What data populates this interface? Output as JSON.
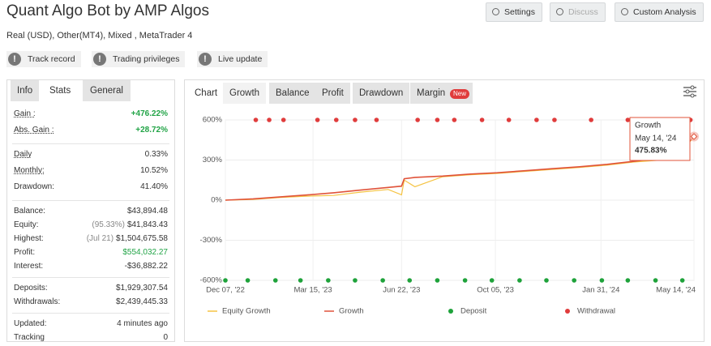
{
  "header": {
    "title": "Quant Algo Bot by AMP Algos",
    "subtitle": "Real (USD), Other(MT4), Mixed , MetaTrader 4",
    "buttons": [
      "Settings",
      "Discuss",
      "Custom Analysis"
    ],
    "badges": [
      "Track record",
      "Trading privileges",
      "Live update"
    ]
  },
  "stats_panel": {
    "tabs": [
      "Info",
      "Stats",
      "General"
    ],
    "groups": [
      [
        {
          "label": "Gain :",
          "value": "+476.22%",
          "color": "#22a447"
        },
        {
          "label": "Abs. Gain :",
          "value": "+28.72%",
          "color": "#22a447"
        }
      ],
      [
        {
          "label": "Daily",
          "value": "0.33%"
        },
        {
          "label": "Monthly:",
          "value": "10.52%"
        },
        {
          "label": "Drawdown:",
          "value": "41.40%"
        }
      ],
      [
        {
          "label": "Balance:",
          "value": "$43,894.48"
        },
        {
          "label": "Equity:",
          "note": "(95.33%)",
          "value": "$41,843.43"
        },
        {
          "label": "Highest:",
          "note": "(Jul 21)",
          "value": "$1,504,675.58"
        },
        {
          "label": "Profit:",
          "value": "$554,032.27",
          "color": "#22a447"
        },
        {
          "label": "Interest:",
          "value": "-$36,882.22"
        }
      ],
      [
        {
          "label": "Deposits:",
          "value": "$1,929,307.54"
        },
        {
          "label": "Withdrawals:",
          "value": "$2,439,445.33"
        }
      ],
      [
        {
          "label": "Updated:",
          "value": "4 minutes ago"
        },
        {
          "label": "Tracking",
          "value": "0"
        }
      ]
    ]
  },
  "chart_panel": {
    "tabs": [
      "Chart",
      "Growth",
      "Balance",
      "Profit",
      "Drawdown",
      "Margin"
    ],
    "new_badge": "New",
    "tooltip": {
      "title": "Growth",
      "date": "May 14, '24",
      "value": "475.83%"
    }
  },
  "chart_data": {
    "type": "line",
    "xlim": [
      "Dec 07, '22",
      "May 14, '24"
    ],
    "xticks": [
      "Dec 07, '22",
      "Mar 15, '23",
      "Jun 22, '23",
      "Oct 05, '23",
      "Jan 31, '24",
      "May 14, '24"
    ],
    "ylim": [
      -600,
      600
    ],
    "yticks": [
      {
        "value": 600,
        "label": "600%"
      },
      {
        "value": 300,
        "label": "300%"
      },
      {
        "value": 0,
        "label": "0%"
      },
      {
        "value": -300,
        "label": "-300%"
      },
      {
        "value": -600,
        "label": "-600%"
      }
    ],
    "grid": true,
    "series": [
      {
        "name": "Equity Growth",
        "color": "#f5c342",
        "kind": "line",
        "x": [
          "Dec 07, '22",
          "Jan 07, '23",
          "Feb 07, '23",
          "Mar 07, '23",
          "Apr 07, '23",
          "May 07, '23",
          "Jun 07, '23",
          "Jun 22, '23",
          "Jun 25, '23",
          "Jul 07, '23",
          "Aug 07, '23",
          "Sep 07, '23",
          "Oct 07, '23",
          "Nov 07, '23",
          "Dec 07, '23",
          "Jan 07, '24",
          "Feb 07, '24",
          "Mar 07, '24",
          "Apr 07, '24",
          "Apr 25, '24",
          "May 14, '24"
        ],
        "values": [
          0,
          5,
          20,
          30,
          35,
          60,
          80,
          40,
          150,
          100,
          175,
          190,
          200,
          215,
          230,
          245,
          262,
          285,
          300,
          330,
          470
        ]
      },
      {
        "name": "Growth",
        "color": "#e0533a",
        "kind": "line",
        "x": [
          "Dec 07, '22",
          "Jan 07, '23",
          "Feb 07, '23",
          "Mar 07, '23",
          "Apr 07, '23",
          "May 07, '23",
          "Jun 07, '23",
          "Jun 22, '23",
          "Jun 25, '23",
          "Jul 07, '23",
          "Aug 07, '23",
          "Sep 07, '23",
          "Oct 07, '23",
          "Nov 07, '23",
          "Dec 07, '23",
          "Jan 07, '24",
          "Feb 07, '24",
          "Mar 07, '24",
          "Apr 07, '24",
          "Apr 25, '24",
          "May 14, '24"
        ],
        "values": [
          0,
          10,
          25,
          38,
          55,
          75,
          95,
          105,
          160,
          170,
          180,
          195,
          205,
          220,
          235,
          250,
          268,
          290,
          315,
          340,
          475.83
        ]
      },
      {
        "name": "Deposit",
        "color": "#1ea23a",
        "kind": "dots",
        "x": [
          "Dec 07, '22",
          "Jan 01, '23",
          "Feb 01, '23",
          "Mar 01, '23",
          "Apr 01, '23",
          "May 01, '23",
          "Jun 01, '23",
          "Jul 01, '23",
          "Aug 01, '23",
          "Sep 01, '23",
          "Oct 01, '23",
          "Nov 01, '23",
          "Dec 01, '23",
          "Jan 01, '24",
          "Feb 01, '24",
          "Mar 01, '24",
          "Apr 01, '24",
          "May 01, '24"
        ],
        "values": [
          -600,
          -600,
          -600,
          -600,
          -600,
          -600,
          -600,
          -600,
          -600,
          -600,
          -600,
          -600,
          -600,
          -600,
          -600,
          -600,
          -600,
          -600
        ]
      },
      {
        "name": "Withdrawal",
        "color": "#e03c3c",
        "kind": "dots",
        "x": [
          "Jan 10, '23",
          "Jan 25, '23",
          "Feb 10, '23",
          "Mar 20, '23",
          "Apr 10, '23",
          "May 01, '23",
          "May 25, '23",
          "Jul 10, '23",
          "Aug 01, '23",
          "Aug 20, '23",
          "Sep 20, '23",
          "Oct 20, '23",
          "Nov 20, '23",
          "Dec 10, '23",
          "Jan 20, '24",
          "Mar 01, '24",
          "Apr 10, '24",
          "May 10, '24"
        ],
        "values": [
          600,
          600,
          600,
          600,
          600,
          600,
          600,
          600,
          600,
          600,
          600,
          600,
          600,
          600,
          600,
          600,
          600,
          600
        ]
      }
    ]
  }
}
